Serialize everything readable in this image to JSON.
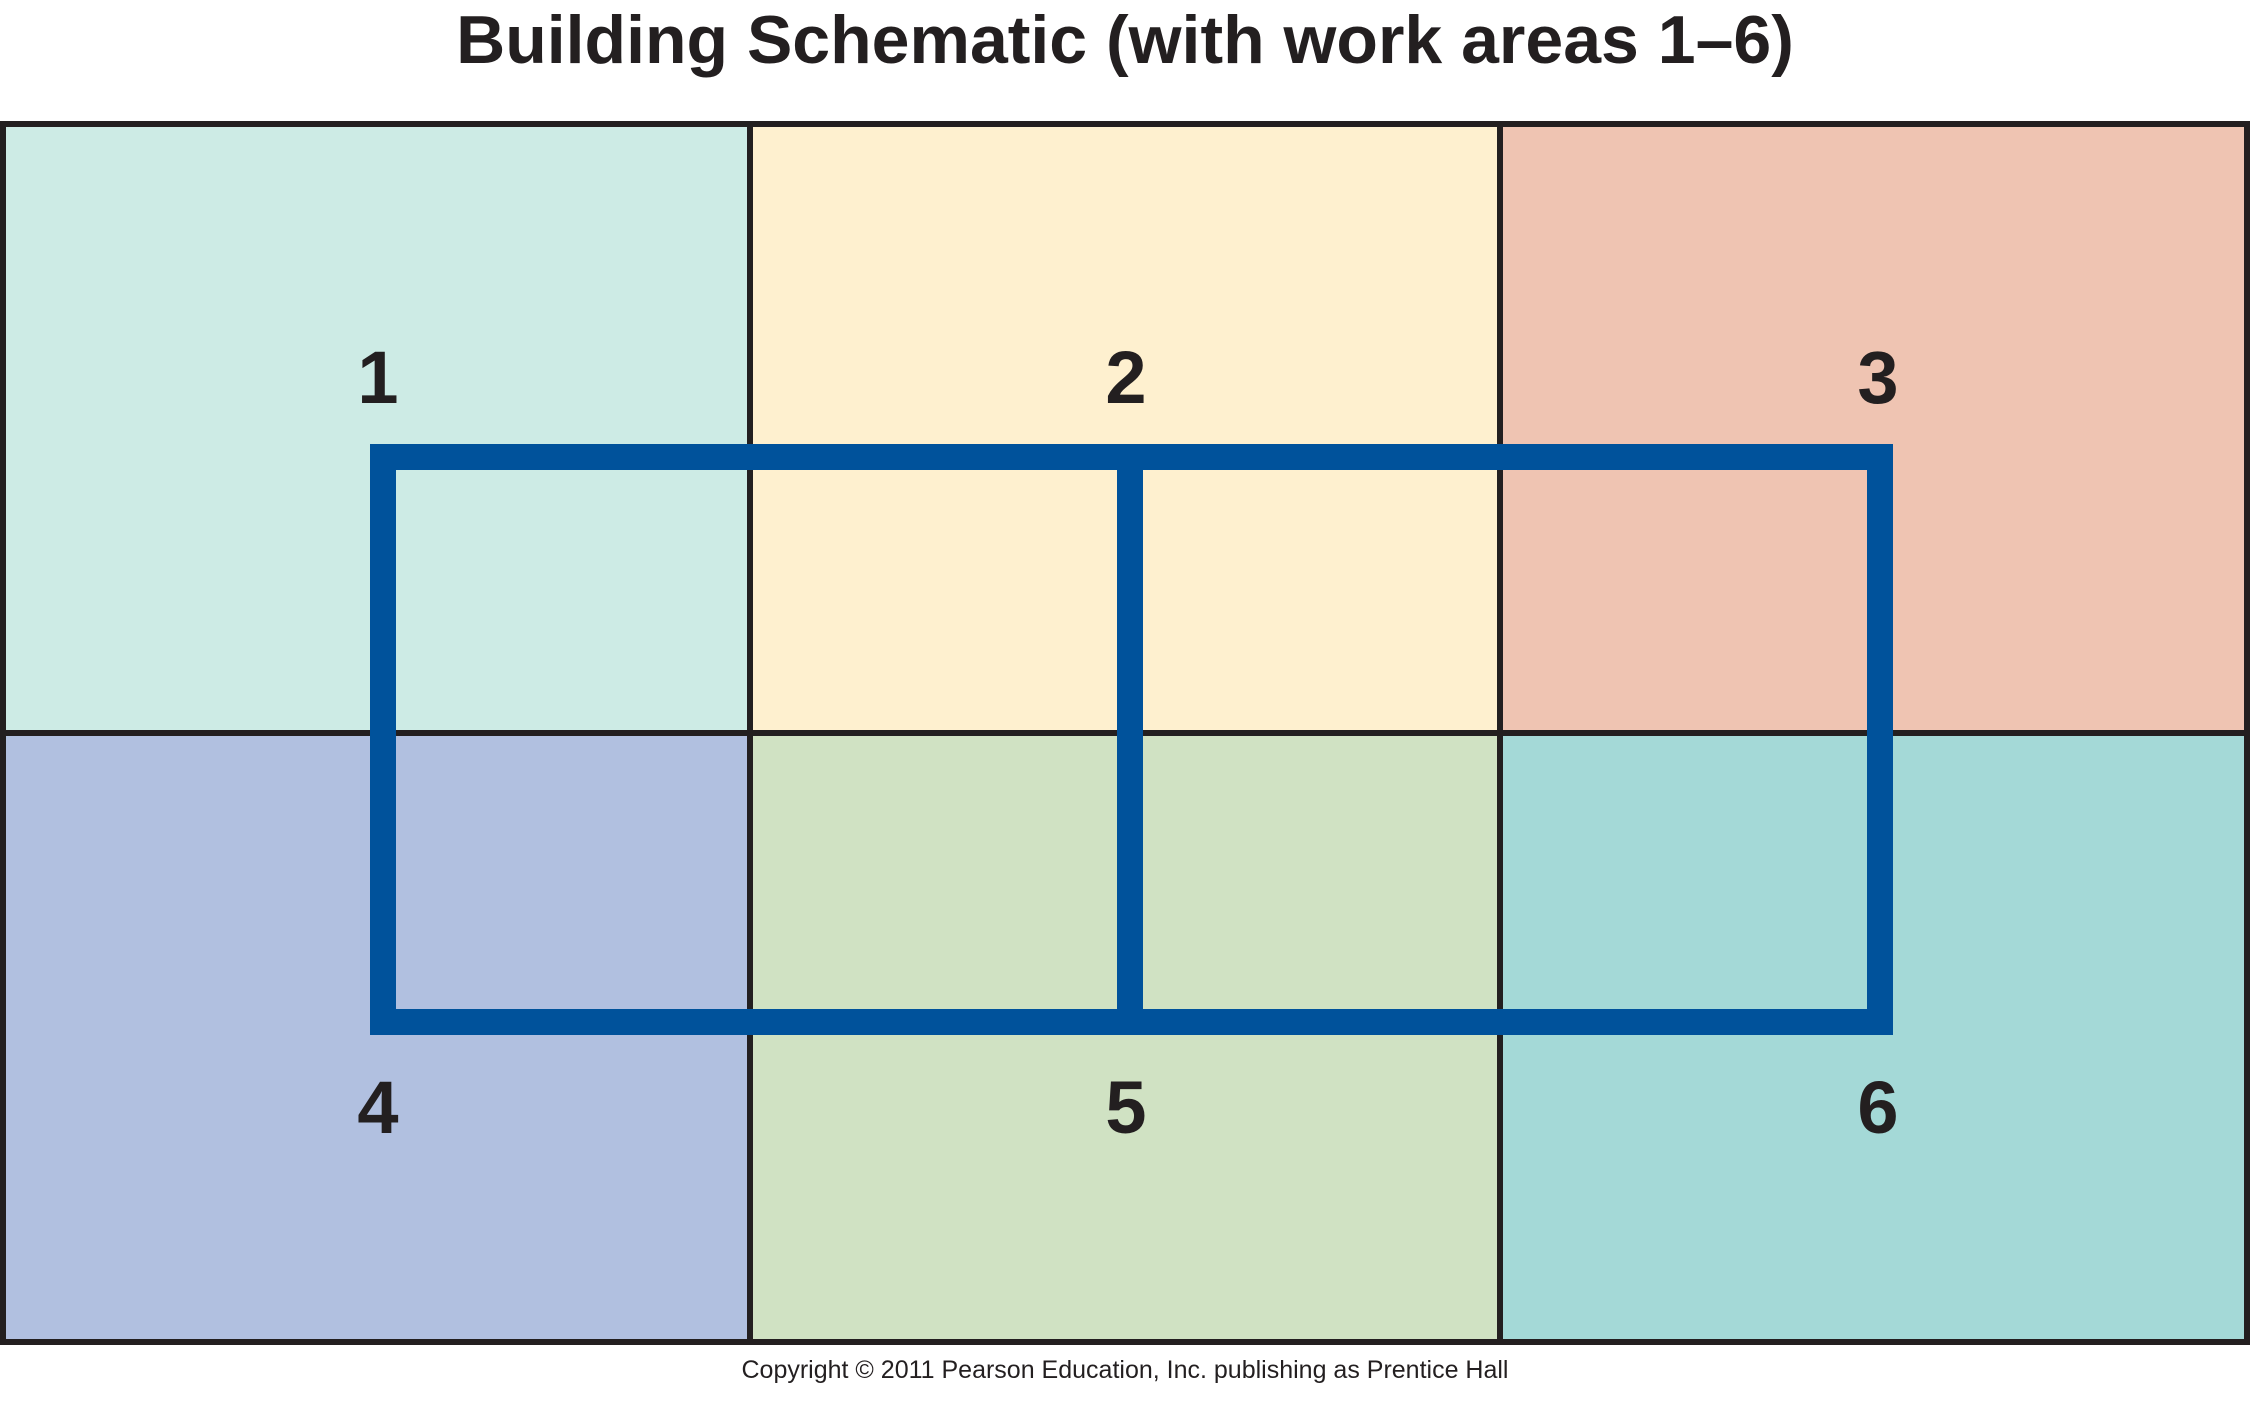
{
  "title": "Building Schematic (with work areas 1–6)",
  "copyright": "Copyright © 2011 Pearson Education, Inc. publishing as Prentice Hall",
  "areas": [
    {
      "label": "1",
      "color": "#cdebe5"
    },
    {
      "label": "2",
      "color": "#fef0cf"
    },
    {
      "label": "3",
      "color": "#efc4b2"
    },
    {
      "label": "4",
      "color": "#b1c0e0"
    },
    {
      "label": "5",
      "color": "#d0e2c3"
    },
    {
      "label": "6",
      "color": "#a4d9d7"
    }
  ],
  "colors": {
    "grid_line": "#231f20",
    "overlay": "#00529b",
    "label": "#231f20"
  }
}
